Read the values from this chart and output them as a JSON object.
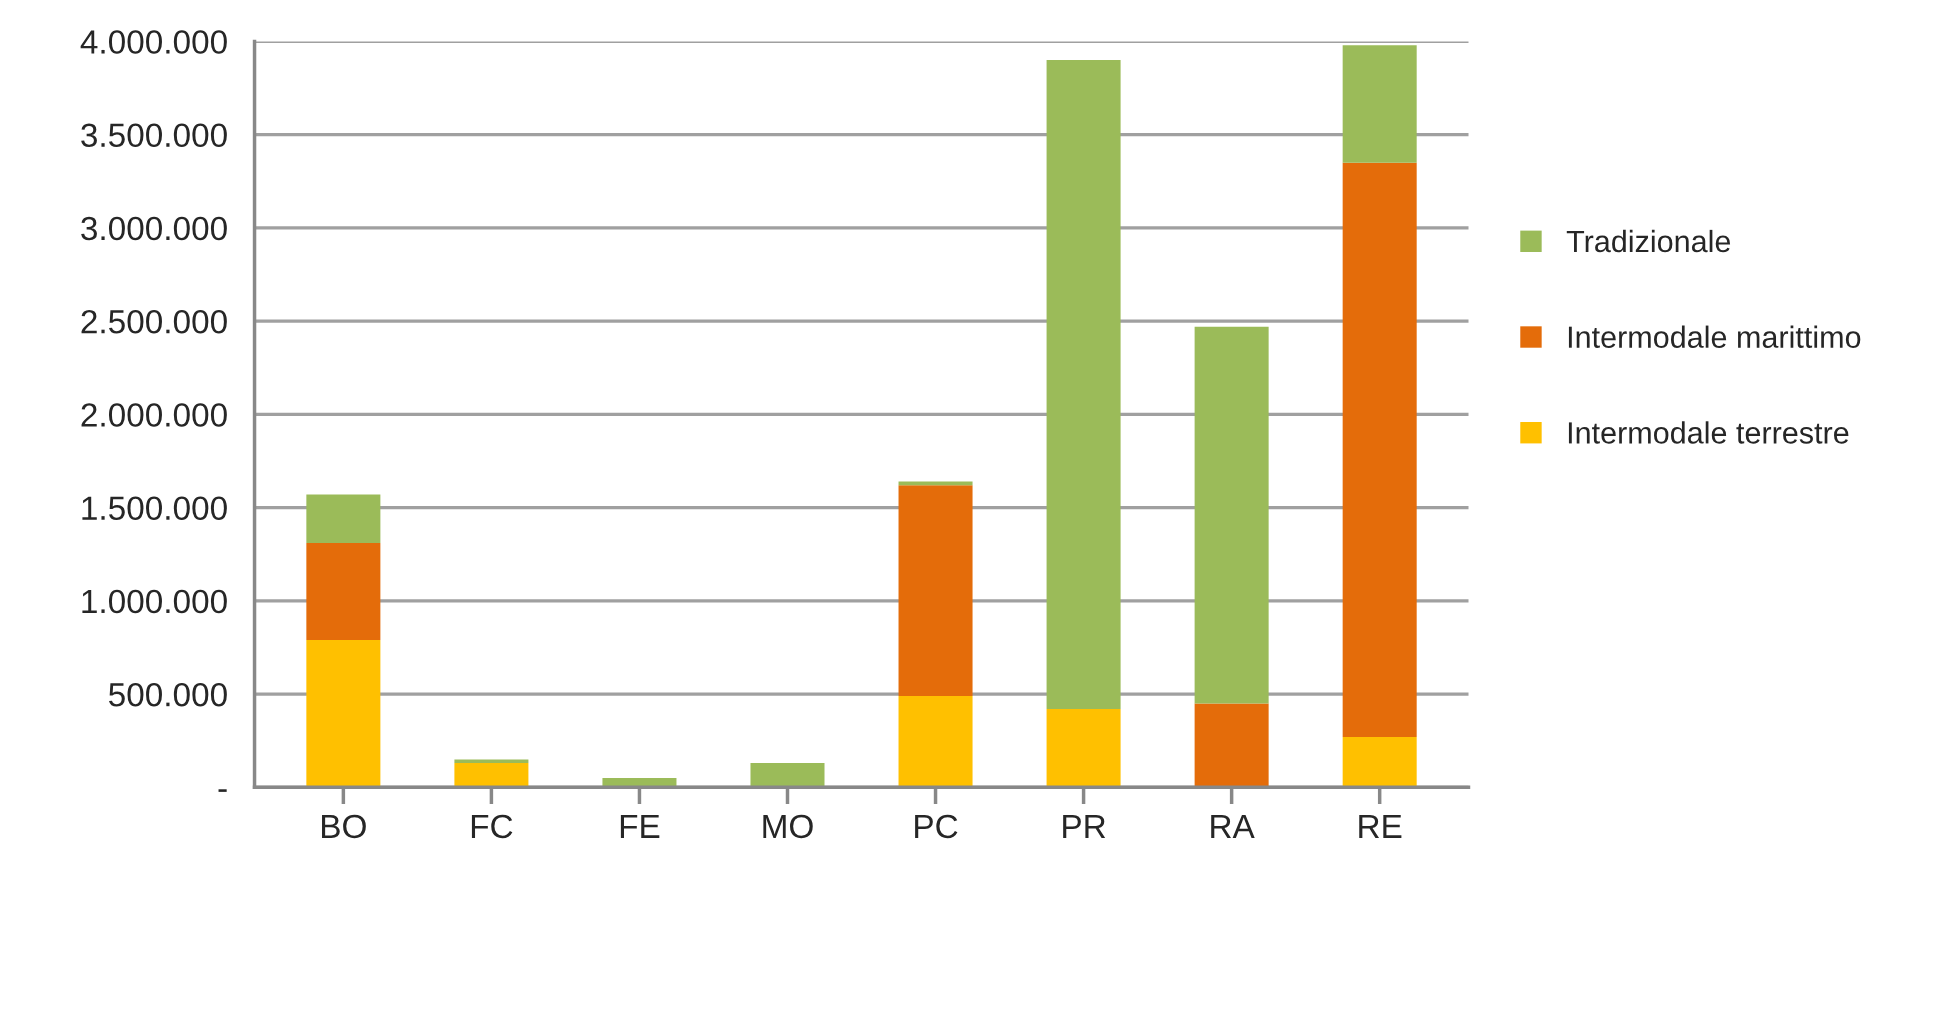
{
  "chart_data": {
    "type": "bar",
    "stacked": true,
    "categories": [
      "BO",
      "FC",
      "FE",
      "MO",
      "PC",
      "PR",
      "RA",
      "RE"
    ],
    "series": [
      {
        "name": "Intermodale terrestre",
        "color": "#ffc000",
        "values": [
          790000,
          130000,
          0,
          0,
          490000,
          420000,
          0,
          270000
        ]
      },
      {
        "name": "Intermodale marittimo",
        "color": "#e46c0a",
        "values": [
          520000,
          0,
          0,
          0,
          1130000,
          0,
          450000,
          3080000
        ]
      },
      {
        "name": "Tradizionale",
        "color": "#9bbb59",
        "values": [
          260000,
          20000,
          50000,
          130000,
          20000,
          3480000,
          2020000,
          630000
        ]
      }
    ],
    "ylim": [
      0,
      4000000
    ],
    "yticks": [
      {
        "value": 0,
        "label": "-"
      },
      {
        "value": 500000,
        "label": "500.000"
      },
      {
        "value": 1000000,
        "label": "1.000.000"
      },
      {
        "value": 1500000,
        "label": "1.500.000"
      },
      {
        "value": 2000000,
        "label": "2.000.000"
      },
      {
        "value": 2500000,
        "label": "2.500.000"
      },
      {
        "value": 3000000,
        "label": "3.000.000"
      },
      {
        "value": 3500000,
        "label": "3.500.000"
      },
      {
        "value": 4000000,
        "label": "4.000.000"
      }
    ],
    "grid": "y",
    "legend": "right"
  }
}
